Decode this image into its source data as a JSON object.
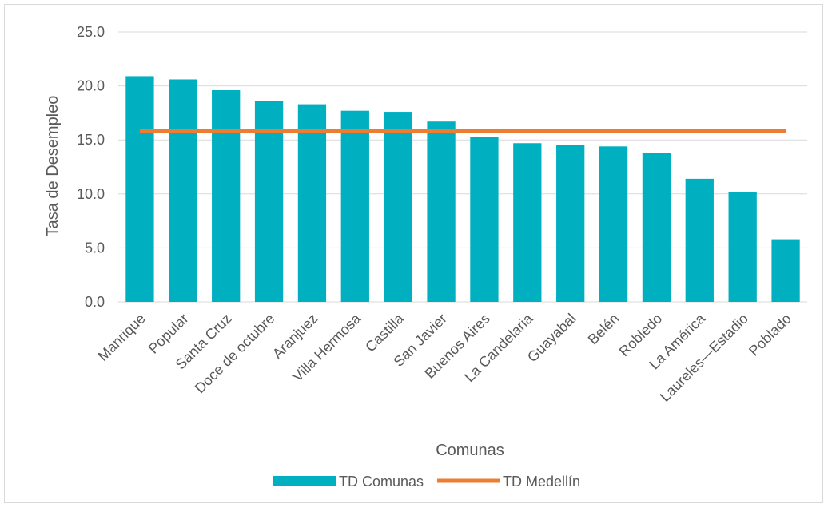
{
  "chart_data": {
    "type": "bar",
    "title": "",
    "xlabel": "Comunas",
    "ylabel": "Tasa de Desempleo",
    "ylim": [
      0,
      25
    ],
    "yticks": [
      "0.0",
      "5.0",
      "10.0",
      "15.0",
      "20.0",
      "25.0"
    ],
    "grid": true,
    "legend_position": "bottom",
    "categories": [
      "Manrique",
      "Popular",
      "Santa Cruz",
      "Doce de octubre",
      "Aranjuez",
      "Villa Hermosa",
      "Castilla",
      "San Javier",
      "Buenos Aires",
      "La Candelaria",
      "Guayabal",
      "Belén",
      "Robledo",
      "La América",
      "Laureles—Estadio",
      "Poblado"
    ],
    "series": [
      {
        "name": "TD Comunas",
        "type": "bar",
        "color": "#00b0c0",
        "values": [
          20.9,
          20.6,
          19.6,
          18.6,
          18.3,
          17.7,
          17.6,
          16.7,
          15.3,
          14.7,
          14.5,
          14.4,
          13.8,
          11.4,
          10.2,
          5.8
        ]
      },
      {
        "name": "TD Medellín",
        "type": "line",
        "color": "#ed7d31",
        "values": [
          15.8,
          15.8,
          15.8,
          15.8,
          15.8,
          15.8,
          15.8,
          15.8,
          15.8,
          15.8,
          15.8,
          15.8,
          15.8,
          15.8,
          15.8,
          15.8
        ]
      }
    ]
  }
}
